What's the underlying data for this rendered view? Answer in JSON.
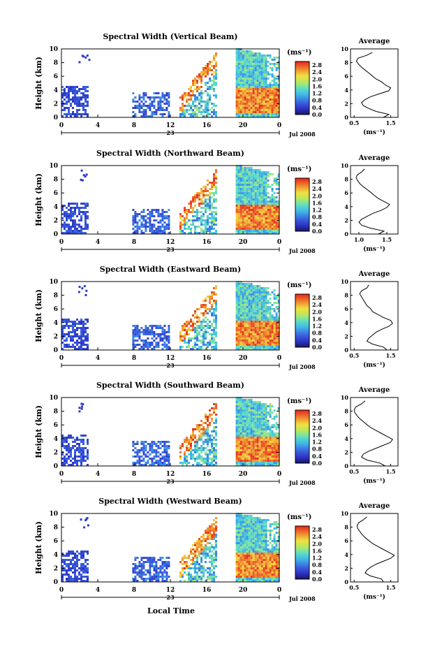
{
  "figure": {
    "bottom_label": "Local Time",
    "date_label": "Jul 2008",
    "day_label": "23",
    "colorbar_unit": "(ms⁻¹)",
    "avg_unit": "(ms⁻¹)"
  },
  "chart_data": [
    {
      "type": "heatmap",
      "title": "Spectral Width (Vertical Beam)",
      "ylabel": "Height (km)",
      "xlabel": "Local Time",
      "x_ticks": [
        "0",
        "4",
        "8",
        "12",
        "16",
        "20",
        "0"
      ],
      "y_ticks": [
        "0",
        "2",
        "4",
        "6",
        "8",
        "10"
      ],
      "ylim": [
        0,
        10
      ],
      "colorbar": {
        "label": "(ms⁻¹)",
        "ticks": [
          "0.0",
          "0.4",
          "0.8",
          "1.2",
          "1.6",
          "2.0",
          "2.4",
          "2.8"
        ],
        "range": [
          0,
          3.0
        ]
      },
      "average": {
        "title": "Average",
        "x_ticks": [
          "0.5",
          "1.5"
        ],
        "xlim": [
          0.4,
          1.7
        ],
        "profile": [
          1.3,
          1.45,
          1.1,
          0.9,
          0.75,
          0.7,
          0.8,
          0.95,
          1.2,
          1.45,
          1.5,
          1.35,
          1.25,
          1.1,
          1.0,
          0.9,
          0.8,
          0.7,
          0.62,
          0.56,
          0.6,
          0.85,
          1.0
        ]
      }
    },
    {
      "type": "heatmap",
      "title": "Spectral Width (Northward Beam)",
      "ylabel": "Height (km)",
      "xlabel": "Local Time",
      "x_ticks": [
        "0",
        "4",
        "8",
        "12",
        "16",
        "20",
        "0"
      ],
      "y_ticks": [
        "0",
        "2",
        "4",
        "6",
        "8",
        "10"
      ],
      "ylim": [
        0,
        10
      ],
      "colorbar": {
        "label": "(ms⁻¹)",
        "ticks": [
          "0.0",
          "0.4",
          "0.8",
          "1.2",
          "1.6",
          "2.0",
          "2.4",
          "2.8"
        ],
        "range": [
          0,
          3.0
        ]
      },
      "average": {
        "title": "Average",
        "x_ticks": [
          "1.0",
          "1.5"
        ],
        "xlim": [
          0.85,
          1.7
        ],
        "profile": [
          1.35,
          1.45,
          1.2,
          1.05,
          1.0,
          1.05,
          1.15,
          1.25,
          1.4,
          1.5,
          1.55,
          1.45,
          1.35,
          1.28,
          1.22,
          1.15,
          1.08,
          1.02,
          0.98,
          0.95,
          0.97,
          1.05,
          1.1
        ]
      }
    },
    {
      "type": "heatmap",
      "title": "Spectral Width (Eastward Beam)",
      "ylabel": "Height (km)",
      "xlabel": "Local Time",
      "x_ticks": [
        "0",
        "4",
        "8",
        "12",
        "16",
        "20",
        "0"
      ],
      "y_ticks": [
        "0",
        "2",
        "4",
        "6",
        "8",
        "10"
      ],
      "ylim": [
        0,
        10
      ],
      "colorbar": {
        "label": "(ms⁻¹)",
        "ticks": [
          "0.0",
          "0.4",
          "0.8",
          "1.2",
          "1.6",
          "2.0",
          "2.4",
          "2.8"
        ],
        "range": [
          0,
          3.0
        ]
      },
      "average": {
        "title": "Average",
        "x_ticks": [
          "0.5",
          "1.5"
        ],
        "xlim": [
          0.4,
          1.7
        ],
        "profile": [
          1.4,
          1.3,
          1.0,
          0.85,
          0.9,
          1.0,
          1.1,
          1.25,
          1.45,
          1.55,
          1.5,
          1.3,
          1.15,
          1.0,
          0.95,
          0.85,
          0.8,
          0.75,
          0.7,
          0.65,
          0.7,
          0.85,
          0.9
        ]
      }
    },
    {
      "type": "heatmap",
      "title": "Spectral Width (Southward Beam)",
      "ylabel": "Height (km)",
      "xlabel": "Local Time",
      "x_ticks": [
        "0",
        "4",
        "8",
        "12",
        "16",
        "20",
        "0"
      ],
      "y_ticks": [
        "0",
        "2",
        "4",
        "6",
        "8",
        "10"
      ],
      "ylim": [
        0,
        10
      ],
      "colorbar": {
        "label": "(ms⁻¹)",
        "ticks": [
          "0.0",
          "0.4",
          "0.8",
          "1.2",
          "1.6",
          "2.0",
          "2.4",
          "2.8"
        ],
        "range": [
          0,
          3.0
        ]
      },
      "average": {
        "title": "Average",
        "x_ticks": [
          "0.5",
          "1.5"
        ],
        "xlim": [
          0.4,
          1.7
        ],
        "profile": [
          1.35,
          1.2,
          0.85,
          0.7,
          0.75,
          0.9,
          1.1,
          1.3,
          1.5,
          1.55,
          1.4,
          1.25,
          1.1,
          0.95,
          0.85,
          0.75,
          0.65,
          0.58,
          0.52,
          0.5,
          0.55,
          0.7,
          0.8
        ]
      }
    },
    {
      "type": "heatmap",
      "title": "Spectral Width (Westward Beam)",
      "ylabel": "Height (km)",
      "xlabel": "Local Time",
      "x_ticks": [
        "0",
        "4",
        "8",
        "12",
        "16",
        "20",
        "0"
      ],
      "y_ticks": [
        "0",
        "2",
        "4",
        "6",
        "8",
        "10"
      ],
      "ylim": [
        0,
        10
      ],
      "colorbar": {
        "label": "(ms⁻¹)",
        "ticks": [
          "0.0",
          "0.4",
          "0.8",
          "1.2",
          "1.6",
          "2.0",
          "2.4",
          "2.8"
        ],
        "range": [
          0,
          3.0
        ]
      },
      "average": {
        "title": "Average",
        "x_ticks": [
          "0.5",
          "1.5"
        ],
        "xlim": [
          0.4,
          1.7
        ],
        "profile": [
          1.3,
          1.25,
          0.95,
          0.8,
          0.85,
          0.95,
          1.1,
          1.3,
          1.5,
          1.6,
          1.45,
          1.3,
          1.15,
          1.0,
          0.9,
          0.8,
          0.72,
          0.66,
          0.6,
          0.58,
          0.62,
          0.75,
          0.85
        ]
      }
    }
  ]
}
